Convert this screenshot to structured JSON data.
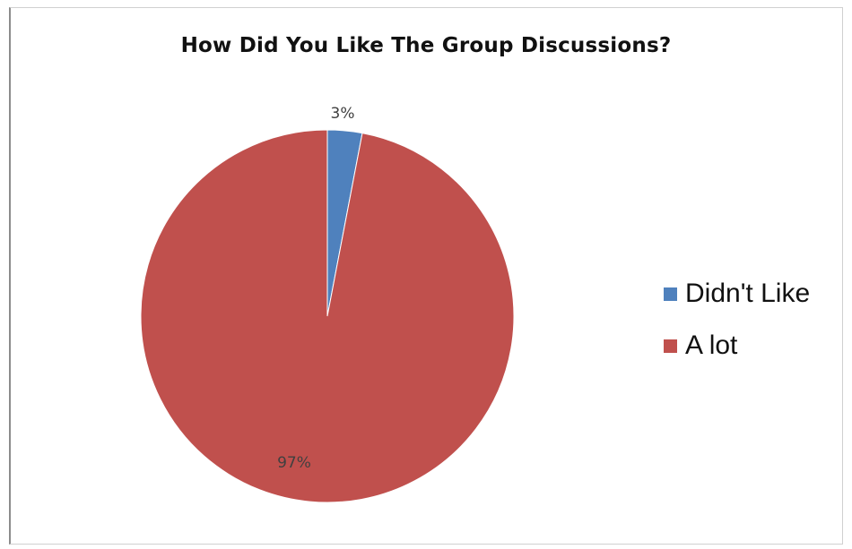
{
  "chart_data": {
    "type": "pie",
    "title": "How Did You Like The Group Discussions?",
    "categories": [
      "Didn't Like",
      "A lot"
    ],
    "values": [
      3,
      97
    ],
    "data_labels": [
      "3%",
      "97%"
    ],
    "colors": [
      "#4f81bd",
      "#c0504d"
    ],
    "legend_position": "right",
    "start_angle_deg": 0
  }
}
